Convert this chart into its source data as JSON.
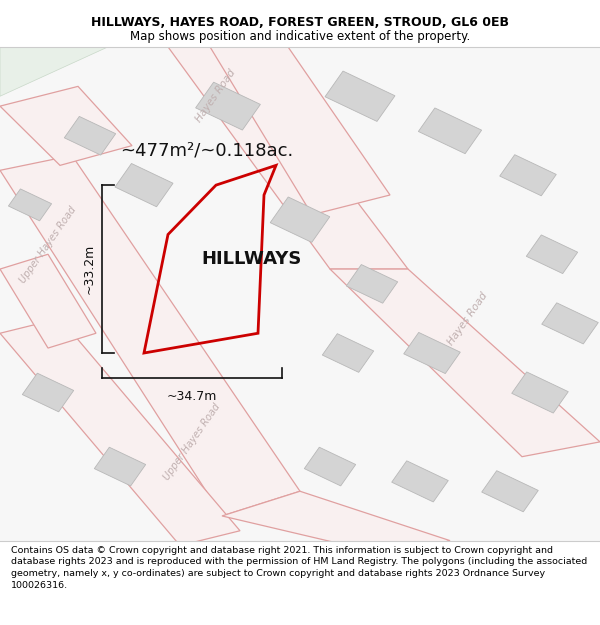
{
  "title": "HILLWAYS, HAYES ROAD, FOREST GREEN, STROUD, GL6 0EB",
  "subtitle": "Map shows position and indicative extent of the property.",
  "footer": "Contains OS data © Crown copyright and database right 2021. This information is subject to Crown copyright and database rights 2023 and is reproduced with the permission of HM Land Registry. The polygons (including the associated geometry, namely x, y co-ordinates) are subject to Crown copyright and database rights 2023 Ordnance Survey 100026316.",
  "bg_color": "#f0f0f0",
  "map_bg": "#f7f7f7",
  "area_label": "~477m²/~0.118ac.",
  "property_label": "HILLWAYS",
  "dim_width": "~34.7m",
  "dim_height": "~33.2m",
  "road_outline_color": "#e0a0a0",
  "road_fill_color": "#f9f0f0",
  "building_color": "#d4d4d4",
  "building_edge_color": "#b8b8b8",
  "property_outline_color": "#cc0000",
  "road_label_color": "#c0b0b0",
  "dim_color": "#111111",
  "green_area_color": "#e8f0e8",
  "green_area_edge": "#c8d8c8",
  "title_fontsize": 9,
  "subtitle_fontsize": 8.5,
  "footer_fontsize": 6.8,
  "area_fontsize": 13,
  "property_fontsize": 13,
  "dim_fontsize": 9
}
